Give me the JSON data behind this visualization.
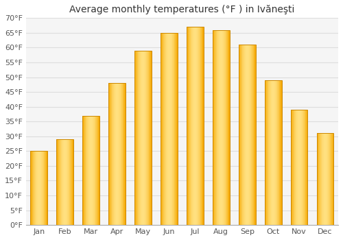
{
  "title": "Average monthly temperatures (°F ) in Ivăneşti",
  "months": [
    "Jan",
    "Feb",
    "Mar",
    "Apr",
    "May",
    "Jun",
    "Jul",
    "Aug",
    "Sep",
    "Oct",
    "Nov",
    "Dec"
  ],
  "values": [
    25,
    29,
    37,
    48,
    59,
    65,
    67,
    66,
    61,
    49,
    39,
    31
  ],
  "ylim": [
    0,
    70
  ],
  "yticks": [
    0,
    5,
    10,
    15,
    20,
    25,
    30,
    35,
    40,
    45,
    50,
    55,
    60,
    65,
    70
  ],
  "ytick_labels": [
    "0°F",
    "5°F",
    "10°F",
    "15°F",
    "20°F",
    "25°F",
    "30°F",
    "35°F",
    "40°F",
    "45°F",
    "50°F",
    "55°F",
    "60°F",
    "65°F",
    "70°F"
  ],
  "bar_color_left": "#F5A800",
  "bar_color_center": "#FFE080",
  "bar_color_right": "#F5A800",
  "bar_edge_color": "#CC8800",
  "background_color": "#ffffff",
  "plot_bg_color": "#f5f5f5",
  "grid_color": "#dddddd",
  "title_fontsize": 10,
  "tick_fontsize": 8,
  "bar_width": 0.65
}
